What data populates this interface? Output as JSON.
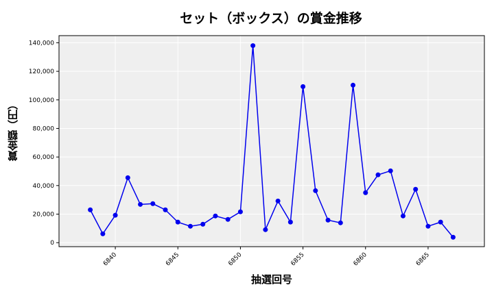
{
  "chart_data": {
    "type": "line",
    "title": "セット（ボックス）の賞金推移",
    "xlabel": "抽選回号",
    "ylabel": "賞金額（円）",
    "x": [
      6838,
      6839,
      6840,
      6841,
      6842,
      6843,
      6844,
      6845,
      6846,
      6847,
      6848,
      6849,
      6850,
      6851,
      6852,
      6853,
      6854,
      6855,
      6856,
      6857,
      6858,
      6859,
      6860,
      6861,
      6862,
      6863,
      6864,
      6865,
      6866,
      6867
    ],
    "series": [
      {
        "name": "賞金額",
        "color": "#0000ee",
        "values": [
          23000,
          6200,
          19200,
          45500,
          26800,
          27300,
          23000,
          14400,
          11500,
          12900,
          18700,
          16300,
          21600,
          138000,
          9100,
          29200,
          14400,
          109300,
          36400,
          15800,
          13900,
          110300,
          35000,
          47500,
          50300,
          18700,
          37400,
          11500,
          14400,
          3800
        ]
      }
    ],
    "xticks": [
      6840,
      6845,
      6850,
      6855,
      6860,
      6865
    ],
    "xtick_labels": [
      "6840",
      "6845",
      "6850",
      "6855",
      "6860",
      "6865"
    ],
    "yticks": [
      0,
      20000,
      40000,
      60000,
      80000,
      100000,
      120000,
      140000
    ],
    "ytick_labels": [
      "0",
      "20,000",
      "40,000",
      "60,000",
      "80,000",
      "100,000",
      "120,000",
      "140,000"
    ],
    "xlim": [
      6835.5,
      6869.5
    ],
    "ylim": [
      -2800,
      145000
    ],
    "grid": true,
    "legend": null,
    "background": "#efefef"
  }
}
